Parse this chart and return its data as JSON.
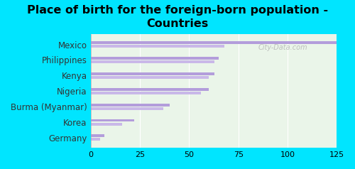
{
  "title": "Place of birth for the foreign-born population -\nCountries",
  "categories": [
    "Germany",
    "Korea",
    "Burma (Myanmar)",
    "Nigeria",
    "Kenya",
    "Philippines",
    "Mexico"
  ],
  "values1": [
    7,
    22,
    40,
    60,
    63,
    65,
    125
  ],
  "values2": [
    5,
    16,
    37,
    56,
    60,
    63,
    68
  ],
  "bar_color1": "#b39ddb",
  "bar_color2": "#c9b8e8",
  "bg_color": "#00e5ff",
  "plot_bg": "#eaf5e9",
  "xlim": [
    0,
    125
  ],
  "xticks": [
    0,
    25,
    50,
    75,
    100,
    125
  ],
  "bar_height": 0.18,
  "bar_gap": 0.05,
  "title_fontsize": 11.5,
  "label_fontsize": 8.5,
  "tick_fontsize": 8,
  "watermark": "City-Data.com"
}
